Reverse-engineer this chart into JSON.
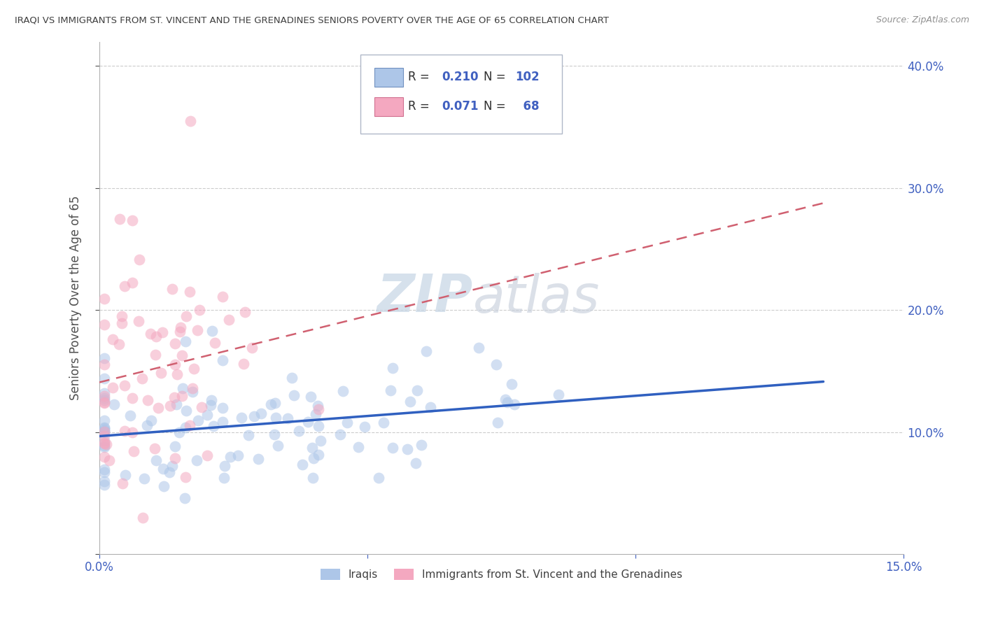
{
  "title": "IRAQI VS IMMIGRANTS FROM ST. VINCENT AND THE GRENADINES SENIORS POVERTY OVER THE AGE OF 65 CORRELATION CHART",
  "source": "Source: ZipAtlas.com",
  "ylabel": "Seniors Poverty Over the Age of 65",
  "xlim": [
    0.0,
    0.15
  ],
  "ylim": [
    0.0,
    0.42
  ],
  "iraqi_R": 0.21,
  "iraqi_N": 102,
  "svg_R": 0.071,
  "svg_N": 68,
  "iraqi_color": "#adc6e8",
  "svg_color": "#f4a8c0",
  "iraqi_line_color": "#3060c0",
  "svg_line_color": "#d06070",
  "title_color": "#404040",
  "source_color": "#909090",
  "background_color": "#ffffff",
  "grid_color": "#cccccc",
  "watermark_color": "#d0dce8",
  "legend_box_color": "#e8e8f0",
  "stat_color": "#4060c0"
}
